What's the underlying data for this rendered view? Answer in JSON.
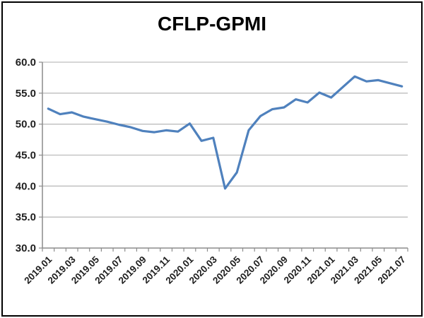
{
  "window": {
    "background_color": "#ffffff",
    "border_color": "#000000"
  },
  "chart_data": {
    "type": "line",
    "title": "CFLP-GPMI",
    "series_name": "CFLP-GPMI",
    "x": [
      "2019.01",
      "2019.02",
      "2019.03",
      "2019.04",
      "2019.05",
      "2019.06",
      "2019.07",
      "2019.08",
      "2019.09",
      "2019.10",
      "2019.11",
      "2019.12",
      "2020.01",
      "2020.02",
      "2020.03",
      "2020.04",
      "2020.05",
      "2020.06",
      "2020.07",
      "2020.08",
      "2020.09",
      "2020.10",
      "2020.11",
      "2020.12",
      "2021.01",
      "2021.02",
      "2021.03",
      "2021.04",
      "2021.05",
      "2021.06",
      "2021.07"
    ],
    "values": [
      52.5,
      51.6,
      51.9,
      51.2,
      50.8,
      50.4,
      49.9,
      49.5,
      48.9,
      48.7,
      49.0,
      48.8,
      50.1,
      47.3,
      47.8,
      39.6,
      42.2,
      49.0,
      51.3,
      52.4,
      52.7,
      54.0,
      53.5,
      55.1,
      54.3,
      56.0,
      57.7,
      56.9,
      57.1,
      56.6,
      56.1
    ],
    "x_tick_labels": [
      "2019.01",
      "2019.03",
      "2019.05",
      "2019.07",
      "2019.09",
      "2019.11",
      "2020.01",
      "2020.03",
      "2020.05",
      "2020.07",
      "2020.09",
      "2020.11",
      "2021.01",
      "2021.03",
      "2021.05",
      "2021.07"
    ],
    "x_label_interval": 2,
    "y_tick_labels": [
      "60.0",
      "55.0",
      "50.0",
      "45.0",
      "40.0",
      "35.0",
      "30.0"
    ],
    "ylim": [
      30,
      60
    ],
    "y_tick_step": 5,
    "grid": "horizontal",
    "legend": "none",
    "xlabel": "",
    "ylabel": "",
    "line_color": "#4F81BD",
    "gridline_color": "#BDBDBD",
    "axis_color": "#8C8C8C",
    "label_color": "#1f1f1f"
  }
}
